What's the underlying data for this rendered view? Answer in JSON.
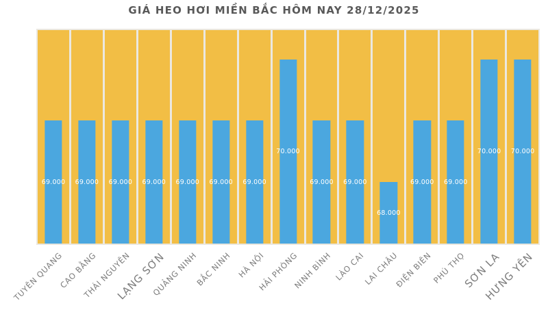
{
  "chart_data": {
    "type": "bar",
    "title": "GIÁ HEO HƠI MIỀN BẮC HÔM NAY 28/12/2025",
    "categories": [
      "TUYÊN QUANG",
      "CAO BẰNG",
      "THÁI NGUYÊN",
      "LẠNG SƠN",
      "QUẢNG NINH",
      "BẮC NINH",
      "HÀ NỘI",
      "HẢI PHÒNG",
      "NINH BÌNH",
      "LÀO CAI",
      "LAI CHÂU",
      "ĐIỆN BIÊN",
      "PHÚ THỌ",
      "SƠN LA",
      "HƯNG YÊN"
    ],
    "values": [
      69000,
      69000,
      69000,
      69000,
      69000,
      69000,
      69000,
      70000,
      69000,
      69000,
      68000,
      69000,
      69000,
      70000,
      70000
    ],
    "bar_labels": [
      "69.000",
      "69.000",
      "69.000",
      "69.000",
      "69.000",
      "69.000",
      "69.000",
      "70.000",
      "69.000",
      "69.000",
      "68.000",
      "69.000",
      "69.000",
      "70.000",
      "70.000"
    ],
    "emphasized_category_indexes": [
      3,
      13,
      14
    ],
    "xlabel": "",
    "ylabel": "",
    "ylim": [
      67000,
      70473
    ],
    "grid": false,
    "legend": false,
    "colors": {
      "bar": "#4BA7DF",
      "plot_background": "#F2BE45",
      "column_separator": "#EBE8E0",
      "bar_value_label": "#FFFFFF",
      "title": "#595959",
      "category_label": "#7C7C7C",
      "page_background": "#FFFFFF"
    }
  }
}
